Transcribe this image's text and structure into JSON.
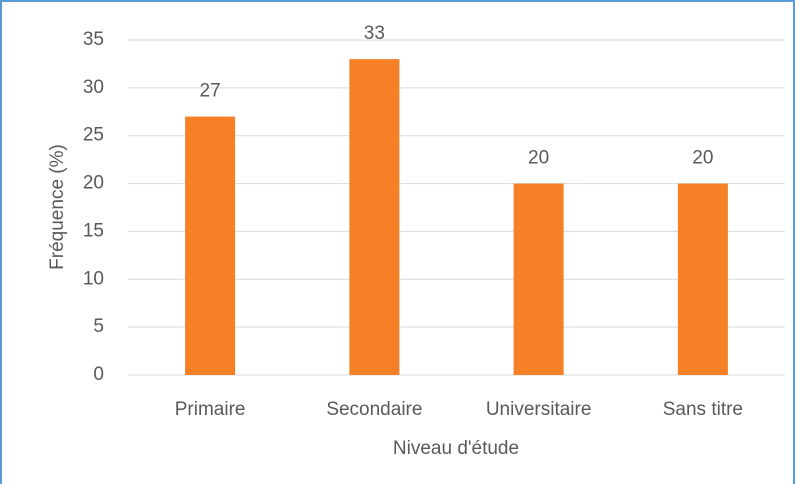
{
  "chart_data": {
    "type": "bar",
    "xlabel": "Niveau d'étude",
    "ylabel": "Fréquence (%)",
    "categories": [
      "Primaire",
      "Secondaire",
      "Universitaire",
      "Sans titre"
    ],
    "values": [
      27,
      33,
      20,
      20
    ],
    "color": "#f58025",
    "ylim": [
      0,
      35
    ],
    "yticks": [
      0,
      5,
      10,
      15,
      20,
      25,
      30,
      35
    ],
    "grid": true
  }
}
